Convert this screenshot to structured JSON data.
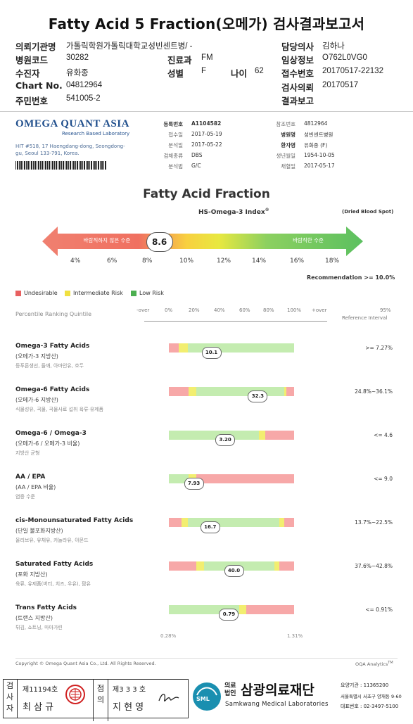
{
  "title": "Fatty Acid 5 Fraction(오메가) 검사결과보고서",
  "header": {
    "institution_label": "의뢰기관명",
    "institution": "가톨릭학원가톨릭대학교성빈센트병/ -",
    "doctor_label": "담당의사",
    "doctor": "김하나",
    "hospital_code_label": "병원코드",
    "hospital_code": "30282",
    "dept_label": "진료과",
    "dept": "FM",
    "clinical_label": "임상정보",
    "clinical": "O762L0VG0",
    "patient_label": "수진자",
    "patient": "유화종",
    "sex_label": "성별",
    "sex": "F",
    "age_label": "나이",
    "age": "62",
    "receipt_label": "접수번호",
    "receipt": "20170517-22132",
    "chart_label": "Chart No.",
    "chart": "04812964",
    "test_request_label": "검사의뢰",
    "test_request": "20170517",
    "rrn_label": "주민번호",
    "rrn": "541005-2",
    "result_report_label": "결과보고"
  },
  "lab": {
    "logo": "OMEGA QUANT ASIA",
    "logo_sub": "Research Based Laboratory",
    "address": "HIT #518, 17 Haengdang-dong, Seongdong-gu, Seoul 133-791, Korea.",
    "reg_label": "등록번호",
    "reg": "A1104582",
    "recv_label": "접수일",
    "recv": "2017-05-19",
    "anal_label": "분석일",
    "anal": "2017-05-22",
    "specimen_label": "검체종류",
    "specimen": "DBS",
    "method_label": "분석법",
    "method": "G/C",
    "ref_label": "참조번호",
    "ref": "4812964",
    "hosp_label": "병원명",
    "hosp": "성빈센트병원",
    "pname_label": "환자명",
    "pname": "유화종 (F)",
    "dob_label": "생년월일",
    "dob": "1954-10-05",
    "collect_label": "채혈일",
    "collect": "2017-05-17"
  },
  "fraction": {
    "title": "Fatty Acid Fraction",
    "index_title": "HS-Omega-3 Index",
    "index_sup": "®",
    "dbs": "(Dried Blood Spot)",
    "left_text": "바람직하지 않은 수준",
    "right_text": "바람직한 수준",
    "value": "8.6",
    "value_num": 8.6,
    "ticks": [
      "4%",
      "6%",
      "8%",
      "10%",
      "12%",
      "14%",
      "16%",
      "18%"
    ],
    "recommendation": "Recommendation  >= 10.0%"
  },
  "legend": {
    "undesirable": "Undesirable",
    "intermediate": "Intermediate Risk",
    "low": "Low Risk",
    "colors": {
      "red": "#f08a8a",
      "yellow": "#f2ec6a",
      "green": "#a8e08c",
      "green_dark": "#4caf50"
    }
  },
  "quintile": {
    "label": "Percentile Ranking Quintile",
    "headers": [
      "-over",
      "0%",
      "20%",
      "40%",
      "60%",
      "80%",
      "100%",
      "+over"
    ],
    "ref_top": "95%",
    "ref_label": "Reference Interval"
  },
  "rows": [
    {
      "title": "Omega-3 Fatty Acids",
      "sub": "(오메가-3 지방산)",
      "desc": "등푸른생선, 들깨, 아마인유, 호두",
      "value": "10.1",
      "pos": 0.34,
      "ref": ">= 7.27%",
      "segs": [
        [
          "r",
          0.08
        ],
        [
          "y",
          0.07
        ],
        [
          "g",
          0.85
        ]
      ]
    },
    {
      "title": "Omega-6 Fatty Acids",
      "sub": "(오메가-6 지방산)",
      "desc": "식물성유, 곡물, 곡물사료 섭취 육류·유제품",
      "value": "32.3",
      "pos": 0.71,
      "ref": "24.8%~36.1%",
      "segs": [
        [
          "r",
          0.16
        ],
        [
          "y",
          0.06
        ],
        [
          "g",
          0.7
        ],
        [
          "y",
          0.02
        ],
        [
          "r",
          0.06
        ]
      ]
    },
    {
      "title": "Omega-6 / Omega-3",
      "sub": "(오메가-6 / 오메가-3 비율)",
      "desc": "지방산 균형",
      "value": "3.20",
      "pos": 0.45,
      "ref": "<= 4.6",
      "segs": [
        [
          "g",
          0.72
        ],
        [
          "y",
          0.05
        ],
        [
          "r",
          0.23
        ]
      ]
    },
    {
      "title": "AA / EPA",
      "sub": "(AA / EPA 비율)",
      "desc": "염증 수준",
      "value": "7.93",
      "pos": 0.2,
      "ref": "<= 9.0",
      "segs": [
        [
          "g",
          0.16
        ],
        [
          "y",
          0.06
        ],
        [
          "r",
          0.78
        ]
      ]
    },
    {
      "title": "cis-Monounsaturated Fatty Acids",
      "sub": "(단일 불포화지방산)",
      "desc": "올리브유, 유채유, 카놀라유, 아몬드",
      "value": "16.7",
      "pos": 0.33,
      "ref": "13.7%~22.5%",
      "segs": [
        [
          "r",
          0.1
        ],
        [
          "y",
          0.05
        ],
        [
          "g",
          0.73
        ],
        [
          "y",
          0.04
        ],
        [
          "r",
          0.08
        ]
      ]
    },
    {
      "title": "Saturated Fatty Acids",
      "sub": "(포화 지방산)",
      "desc": "육류, 유제품(버터, 치즈, 우유), 팜유",
      "value": "40.0",
      "pos": 0.52,
      "ref": "37.6%~42.8%",
      "segs": [
        [
          "r",
          0.22
        ],
        [
          "y",
          0.06
        ],
        [
          "g",
          0.56
        ],
        [
          "y",
          0.04
        ],
        [
          "r",
          0.12
        ]
      ]
    },
    {
      "title": "Trans Fatty Acids",
      "sub": "(트랜스 지방산)",
      "desc": "튀김, 쇼트닝, 마아가린",
      "value": "0.79",
      "pos": 0.48,
      "ref": "<= 0.91%",
      "segs": [
        [
          "g",
          0.56
        ],
        [
          "y",
          0.06
        ],
        [
          "r",
          0.38
        ]
      ]
    }
  ],
  "trans_min": "0.28%",
  "trans_max": "1.31%",
  "footer": {
    "copyright": "Copyright © Omega Quant Asia Co., Ltd.  All Rights Reserved.",
    "brand": "OQA Analytics",
    "brand_tm": "TM"
  },
  "bottom": {
    "inspector_label": "검사자",
    "inspector_no": "제11194호",
    "inspector_name": "최 삼 규",
    "approver_label": "점의",
    "approver_no": "제3 3 3 호",
    "approver_name": "지 현 영",
    "sml": "SML",
    "corp": "의료법인",
    "foundation": "삼광의료재단",
    "foundation_en": "Samkwang Medical Laboratories",
    "code": "요양기관 : 11365200",
    "addr": "서울특별시 서초구 양재동 9-60",
    "phone": "대표번호 : 02-3497-5100"
  }
}
